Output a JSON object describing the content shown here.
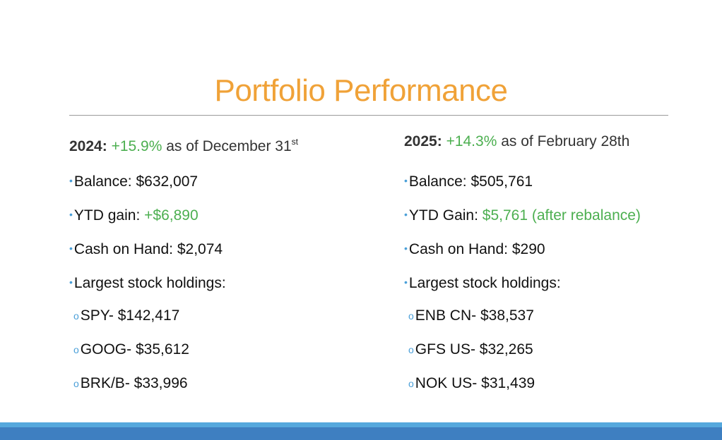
{
  "title": "Portfolio Performance",
  "left": {
    "year": "2024:",
    "pct": "+15.9%",
    "asof": "as of December 31",
    "asof_sup": "st",
    "balance_label": "Balance:  ",
    "balance_value": "$632,007",
    "ytd_label": "YTD gain:  ",
    "ytd_value": "+$6,890",
    "cash": "Cash on Hand: $2,074",
    "largest": "Largest stock holdings:",
    "holdings": [
      "SPY- $142,417",
      "GOOG- $35,612",
      "BRK/B- $33,996"
    ]
  },
  "right": {
    "year": "2025:",
    "pct": "+14.3%",
    "asof": "as of February 28th",
    "balance_label": "Balance:  ",
    "balance_value": "$505,761",
    "ytd_label": "YTD Gain:  ",
    "ytd_value": "$5,761 (after rebalance)",
    "cash": "Cash on Hand: $290",
    "largest": "Largest stock holdings:",
    "holdings": [
      "ENB CN- $38,537",
      "GFS US- $32,265",
      "NOK US- $31,439"
    ]
  },
  "bullet": "•",
  "subbullet": "o",
  "colors": {
    "title": "#f0a238",
    "positive": "#4caf50",
    "bullet": "#4a9fd8",
    "bar_light": "#55a8dd",
    "bar_dark": "#3e7fc1"
  }
}
